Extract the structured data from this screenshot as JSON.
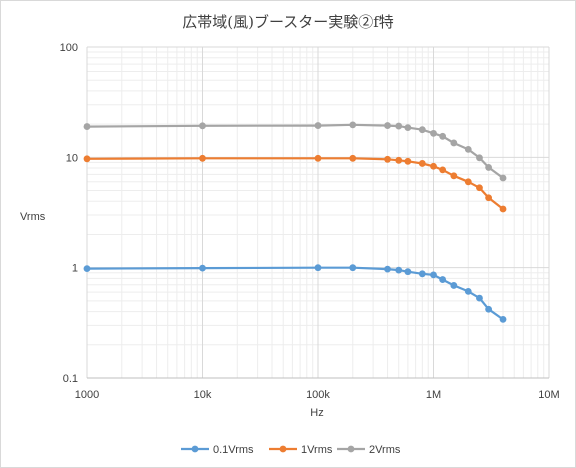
{
  "chart_data": {
    "type": "line",
    "title": "広帯域(風)ブースター実験②f特",
    "xlabel": "Hz",
    "ylabel": "Vrms",
    "x_scale": "log",
    "y_scale": "log",
    "xlim": [
      1000,
      10000000
    ],
    "ylim": [
      0.1,
      100
    ],
    "x_ticks": [
      1000,
      10000,
      100000,
      1000000,
      10000000
    ],
    "x_tick_labels": [
      "1000",
      "10k",
      "100k",
      "1M",
      "10M"
    ],
    "y_ticks": [
      0.1,
      1,
      10,
      100
    ],
    "y_tick_labels": [
      "0.1",
      "1",
      "10",
      "100"
    ],
    "grid": true,
    "legend_position": "bottom",
    "x": [
      1000,
      10000,
      100000,
      200000,
      400000,
      500000,
      600000,
      800000,
      1000000,
      1200000,
      1500000,
      2000000,
      2500000,
      3000000,
      4000000
    ],
    "series": [
      {
        "name": "0.1Vrms",
        "color": "#5b9bd5",
        "values": [
          0.98,
          0.99,
          1.0,
          1.0,
          0.97,
          0.95,
          0.92,
          0.88,
          0.86,
          0.78,
          0.69,
          0.61,
          0.53,
          0.42,
          0.34
        ]
      },
      {
        "name": "1Vrms",
        "color": "#ed7d31",
        "values": [
          9.7,
          9.8,
          9.8,
          9.8,
          9.6,
          9.4,
          9.2,
          8.8,
          8.3,
          7.7,
          6.8,
          6.0,
          5.3,
          4.3,
          3.4
        ]
      },
      {
        "name": "2Vrms",
        "color": "#a5a5a5",
        "values": [
          19.0,
          19.3,
          19.4,
          19.7,
          19.4,
          19.2,
          18.6,
          17.8,
          16.5,
          15.5,
          13.5,
          11.8,
          9.9,
          8.1,
          6.5
        ]
      }
    ]
  }
}
